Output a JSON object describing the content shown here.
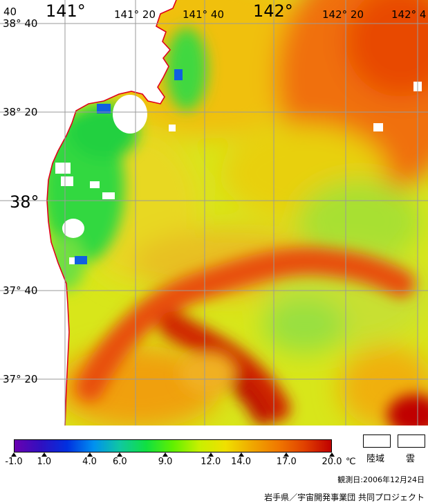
{
  "map": {
    "type": "sea-surface-temperature",
    "longitude_labels": [
      {
        "text": "40",
        "size": "minor"
      },
      {
        "text": "141°",
        "size": "major"
      },
      {
        "text": "141° 20",
        "size": "minor"
      },
      {
        "text": "141° 40",
        "size": "minor"
      },
      {
        "text": "142°",
        "size": "major"
      },
      {
        "text": "142° 20",
        "size": "minor"
      },
      {
        "text": "142° 4",
        "size": "minor"
      }
    ],
    "latitude_labels": [
      {
        "text": "38° 40",
        "size": "minor"
      },
      {
        "text": "38° 20",
        "size": "minor"
      },
      {
        "text": "38°",
        "size": "major"
      },
      {
        "text": "37° 40",
        "size": "minor"
      },
      {
        "text": "37° 20",
        "size": "minor"
      }
    ],
    "coastline_color": "#e0001a",
    "grid_color": "#9a9a9a"
  },
  "legend": {
    "unit": "℃",
    "ticks": [
      "-1.0",
      "1.0",
      "4.0",
      "6.0",
      "9.0",
      "12.0",
      "14.0",
      "17.0",
      "20.0"
    ],
    "colorbar_min": -1.0,
    "colorbar_max": 20.0,
    "colors": [
      "#6a00b0",
      "#3010c0",
      "#0030e0",
      "#0090f0",
      "#10c8a0",
      "#10e040",
      "#60f000",
      "#c8f000",
      "#f0e000",
      "#f0a800",
      "#f07800",
      "#e04000",
      "#c00000"
    ],
    "land_label": "陸域",
    "cloud_label": "雲",
    "observation_date": "観測日:2006年12月24日",
    "credit": "岩手県／宇宙開発事業団  共同プロジェクト"
  }
}
